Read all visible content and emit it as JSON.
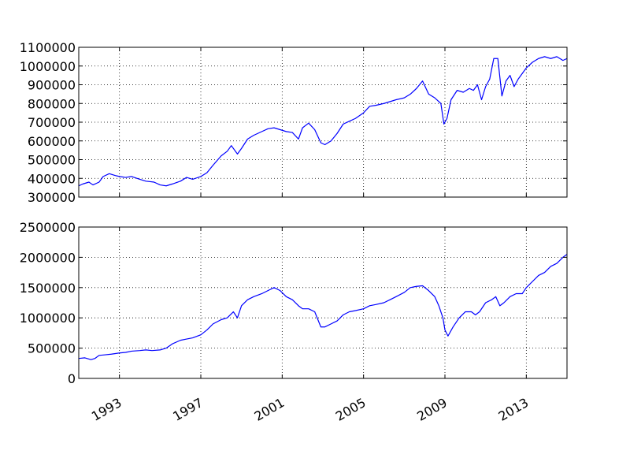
{
  "chart_data": [
    {
      "type": "line",
      "title": "",
      "xlabel": "",
      "ylabel": "",
      "xlim": [
        1991.0,
        2015.0
      ],
      "ylim": [
        300000,
        1100000
      ],
      "yticks": [
        300000,
        400000,
        500000,
        600000,
        700000,
        800000,
        900000,
        1000000,
        1100000
      ],
      "ytick_labels": [
        "300000",
        "400000",
        "500000",
        "600000",
        "700000",
        "800000",
        "900000",
        "1000000",
        "1100000"
      ],
      "xticks": [
        1993,
        1997,
        2001,
        2005,
        2009,
        2013
      ],
      "xtick_labels": [
        "",
        "",
        "",
        "",
        "",
        ""
      ],
      "grid": true,
      "legend": "none",
      "color": "#0000ff",
      "series": [
        {
          "x": [
            1991.0,
            1991.2,
            1991.5,
            1991.7,
            1992.0,
            1992.2,
            1992.5,
            1992.8,
            1993.0,
            1993.3,
            1993.6,
            1994.0,
            1994.3,
            1994.7,
            1995.0,
            1995.3,
            1995.6,
            1996.0,
            1996.3,
            1996.6,
            1997.0,
            1997.3,
            1997.6,
            1998.0,
            1998.3,
            1998.5,
            1998.8,
            1999.0,
            1999.3,
            1999.6,
            2000.0,
            2000.3,
            2000.6,
            2000.9,
            2001.2,
            2001.5,
            2001.8,
            2002.0,
            2002.3,
            2002.6,
            2002.9,
            2003.1,
            2003.4,
            2003.7,
            2004.0,
            2004.3,
            2004.6,
            2005.0,
            2005.3,
            2005.6,
            2006.0,
            2006.3,
            2006.6,
            2007.0,
            2007.3,
            2007.6,
            2007.9,
            2008.2,
            2008.5,
            2008.8,
            2008.95,
            2009.1,
            2009.3,
            2009.6,
            2009.9,
            2010.2,
            2010.4,
            2010.6,
            2010.8,
            2011.0,
            2011.2,
            2011.4,
            2011.6,
            2011.8,
            2012.0,
            2012.2,
            2012.4,
            2012.6,
            2012.8,
            2013.0,
            2013.3,
            2013.6,
            2013.9,
            2014.2,
            2014.5,
            2014.8,
            2015.0
          ],
          "y": [
            360000,
            370000,
            380000,
            365000,
            380000,
            410000,
            425000,
            415000,
            410000,
            405000,
            410000,
            395000,
            385000,
            380000,
            365000,
            360000,
            370000,
            385000,
            405000,
            395000,
            410000,
            430000,
            470000,
            520000,
            545000,
            575000,
            530000,
            560000,
            610000,
            630000,
            650000,
            665000,
            670000,
            660000,
            650000,
            645000,
            610000,
            670000,
            695000,
            660000,
            590000,
            580000,
            600000,
            640000,
            690000,
            705000,
            720000,
            750000,
            785000,
            790000,
            800000,
            810000,
            820000,
            830000,
            850000,
            880000,
            920000,
            850000,
            830000,
            800000,
            690000,
            720000,
            820000,
            870000,
            860000,
            880000,
            870000,
            900000,
            820000,
            890000,
            930000,
            1040000,
            1040000,
            840000,
            920000,
            950000,
            890000,
            930000,
            960000,
            990000,
            1020000,
            1040000,
            1050000,
            1040000,
            1050000,
            1030000,
            1040000
          ]
        }
      ]
    },
    {
      "type": "line",
      "title": "",
      "xlabel": "",
      "ylabel": "",
      "xlim": [
        1991.0,
        2015.0
      ],
      "ylim": [
        0,
        2500000
      ],
      "yticks": [
        0,
        500000,
        1000000,
        1500000,
        2000000,
        2500000
      ],
      "ytick_labels": [
        "0",
        "500000",
        "1000000",
        "1500000",
        "2000000",
        "2500000"
      ],
      "xticks": [
        1993,
        1997,
        2001,
        2005,
        2009,
        2013
      ],
      "xtick_labels": [
        "1993",
        "1997",
        "2001",
        "2005",
        "2009",
        "2013"
      ],
      "grid": true,
      "legend": "none",
      "color": "#0000ff",
      "series": [
        {
          "x": [
            1991.0,
            1991.3,
            1991.6,
            1991.8,
            1992.0,
            1992.3,
            1992.6,
            1993.0,
            1993.3,
            1993.6,
            1994.0,
            1994.3,
            1994.6,
            1995.0,
            1995.3,
            1995.6,
            1996.0,
            1996.3,
            1996.6,
            1997.0,
            1997.3,
            1997.6,
            1998.0,
            1998.3,
            1998.6,
            1998.8,
            1999.0,
            1999.3,
            1999.6,
            2000.0,
            2000.3,
            2000.6,
            2000.9,
            2001.2,
            2001.5,
            2001.8,
            2002.0,
            2002.3,
            2002.6,
            2002.9,
            2003.1,
            2003.4,
            2003.7,
            2004.0,
            2004.3,
            2004.6,
            2005.0,
            2005.3,
            2005.6,
            2006.0,
            2006.3,
            2006.6,
            2007.0,
            2007.3,
            2007.6,
            2007.9,
            2008.2,
            2008.5,
            2008.7,
            2008.9,
            2009.0,
            2009.15,
            2009.4,
            2009.7,
            2010.0,
            2010.3,
            2010.5,
            2010.7,
            2011.0,
            2011.3,
            2011.5,
            2011.7,
            2011.9,
            2012.2,
            2012.5,
            2012.8,
            2013.0,
            2013.3,
            2013.6,
            2013.9,
            2014.2,
            2014.5,
            2014.8,
            2015.0
          ],
          "y": [
            330000,
            340000,
            310000,
            330000,
            380000,
            390000,
            400000,
            420000,
            430000,
            450000,
            460000,
            470000,
            460000,
            470000,
            500000,
            570000,
            630000,
            650000,
            670000,
            720000,
            800000,
            900000,
            970000,
            1000000,
            1100000,
            1000000,
            1200000,
            1300000,
            1350000,
            1400000,
            1450000,
            1500000,
            1450000,
            1350000,
            1300000,
            1200000,
            1150000,
            1150000,
            1100000,
            850000,
            850000,
            900000,
            950000,
            1050000,
            1100000,
            1120000,
            1150000,
            1200000,
            1220000,
            1250000,
            1300000,
            1350000,
            1420000,
            1500000,
            1520000,
            1530000,
            1450000,
            1350000,
            1200000,
            1000000,
            800000,
            700000,
            850000,
            1000000,
            1100000,
            1100000,
            1050000,
            1100000,
            1250000,
            1300000,
            1350000,
            1200000,
            1250000,
            1350000,
            1400000,
            1400000,
            1500000,
            1600000,
            1700000,
            1750000,
            1850000,
            1900000,
            2000000,
            2050000
          ]
        }
      ]
    }
  ]
}
